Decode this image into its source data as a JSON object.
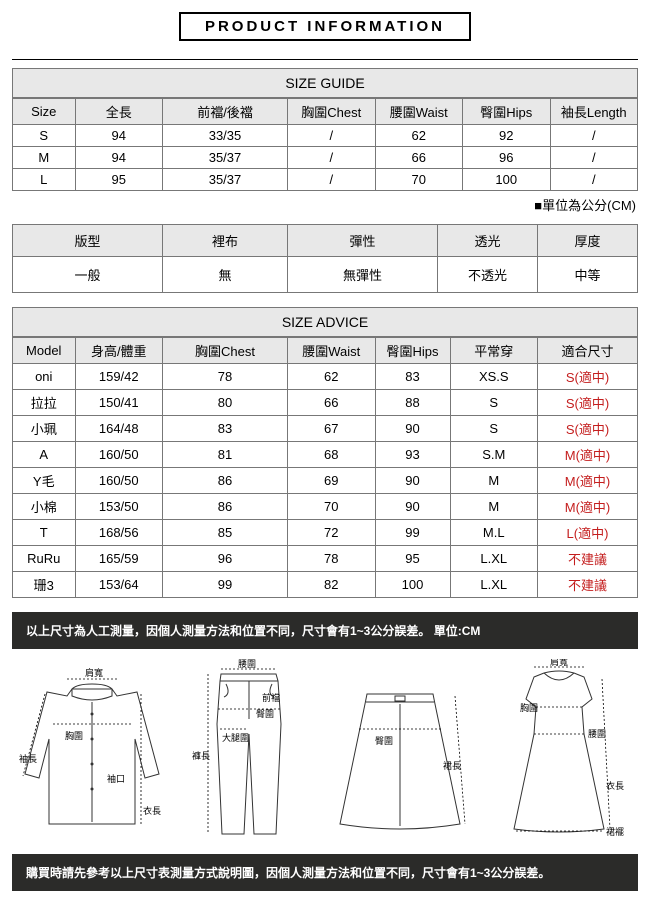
{
  "title": "PRODUCT INFORMATION",
  "sizeGuide": {
    "heading": "SIZE GUIDE",
    "unitNote": "■單位為公分(CM)",
    "headers": [
      "Size",
      "全長",
      "前襠/後襠",
      "胸圍Chest",
      "腰圍Waist",
      "臀圍Hips",
      "袖長Length"
    ],
    "rows": [
      [
        "S",
        "94",
        "33/35",
        "/",
        "62",
        "92",
        "/"
      ],
      [
        "M",
        "94",
        "35/37",
        "/",
        "66",
        "96",
        "/"
      ],
      [
        "L",
        "95",
        "35/37",
        "/",
        "70",
        "100",
        "/"
      ]
    ],
    "colWidths": [
      "10%",
      "14%",
      "20%",
      "14%",
      "14%",
      "14%",
      "14%"
    ]
  },
  "attributes": {
    "headers": [
      "版型",
      "裡布",
      "彈性",
      "透光",
      "厚度"
    ],
    "values": [
      "一般",
      "無",
      "無彈性",
      "不透光",
      "中等"
    ],
    "colWidths": [
      "24%",
      "20%",
      "24%",
      "16%",
      "16%"
    ]
  },
  "sizeAdvice": {
    "heading": "SIZE ADVICE",
    "headers": [
      "Model",
      "身高/體重",
      "胸圍Chest",
      "腰圍Waist",
      "臀圍Hips",
      "平常穿",
      "適合尺寸"
    ],
    "rows": [
      {
        "cells": [
          "oni",
          "159/42",
          "78",
          "62",
          "83",
          "XS.S"
        ],
        "fit": "S(適中)",
        "fitClass": "red"
      },
      {
        "cells": [
          "拉拉",
          "150/41",
          "80",
          "66",
          "88",
          "S"
        ],
        "fit": "S(適中)",
        "fitClass": "red"
      },
      {
        "cells": [
          "小珮",
          "164/48",
          "83",
          "67",
          "90",
          "S"
        ],
        "fit": "S(適中)",
        "fitClass": "red"
      },
      {
        "cells": [
          "A",
          "160/50",
          "81",
          "68",
          "93",
          "S.M"
        ],
        "fit": "M(適中)",
        "fitClass": "red"
      },
      {
        "cells": [
          "Y毛",
          "160/50",
          "86",
          "69",
          "90",
          "M"
        ],
        "fit": "M(適中)",
        "fitClass": "red"
      },
      {
        "cells": [
          "小棉",
          "153/50",
          "86",
          "70",
          "90",
          "M"
        ],
        "fit": "M(適中)",
        "fitClass": "red"
      },
      {
        "cells": [
          "T",
          "168/56",
          "85",
          "72",
          "99",
          "M.L"
        ],
        "fit": "L(適中)",
        "fitClass": "red"
      },
      {
        "cells": [
          "RuRu",
          "165/59",
          "96",
          "78",
          "95",
          "L.XL"
        ],
        "fit": "不建議",
        "fitClass": "red"
      },
      {
        "cells": [
          "珊3",
          "153/64",
          "99",
          "82",
          "100",
          "L.XL"
        ],
        "fit": "不建議",
        "fitClass": "red"
      }
    ],
    "colWidths": [
      "10%",
      "14%",
      "20%",
      "14%",
      "12%",
      "14%",
      "16%"
    ]
  },
  "notes": {
    "top": "以上尺寸為人工測量，因個人測量方法和位置不同，尺寸會有1~3公分誤差。 單位:CM",
    "bottom": "購買時請先參考以上尺寸表測量方式說明圖，因個人測量方法和位置不同，尺寸會有1~3公分誤差。"
  },
  "diagramLabels": {
    "shirt": {
      "shoulder": "肩寬",
      "chest": "胸圍",
      "sleeve": "袖長",
      "cuff": "袖口",
      "length": "衣長"
    },
    "pants": {
      "waist": "腰圍",
      "front": "前襠",
      "hip": "臀圍",
      "thigh": "大腿圍",
      "length": "褲長"
    },
    "skirt": {
      "hip": "臀圍",
      "length": "裙長"
    },
    "dress": {
      "shoulder": "肩寬",
      "chest": "胸圍",
      "waist": "腰圍",
      "length": "衣長",
      "hem": "裙襬"
    }
  }
}
